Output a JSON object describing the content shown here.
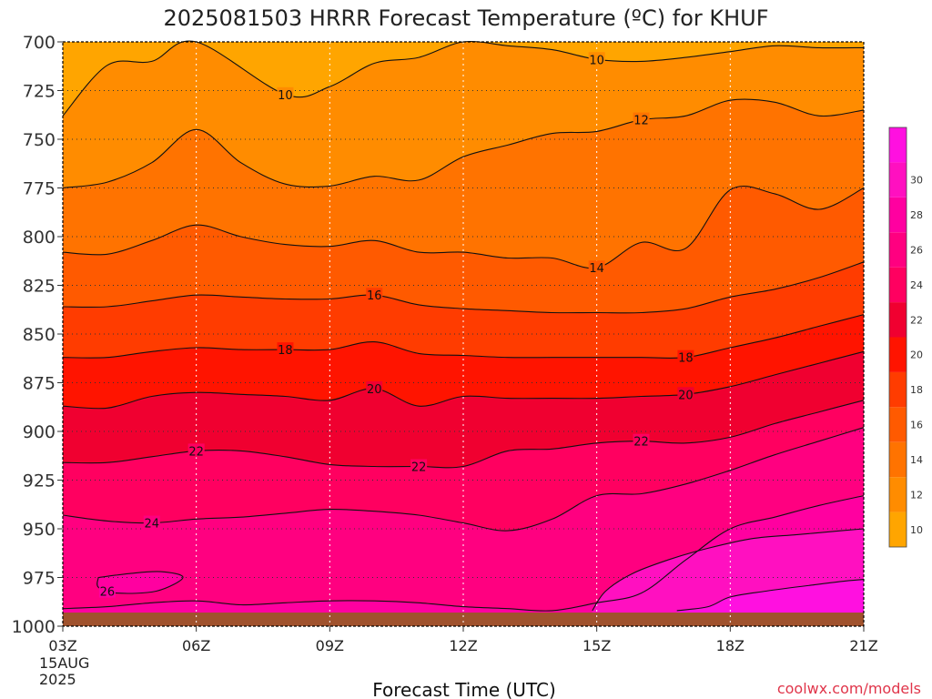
{
  "chart_data": {
    "type": "contour",
    "title": "2025081503 HRRR Forecast Temperature (ºC) for KHUF",
    "xlabel": "Forecast Time (UTC)",
    "credit": "coolwx.com/models",
    "x_ticks": [
      {
        "hour": 0,
        "label": "03Z",
        "sub": [
          "15AUG",
          "2025"
        ]
      },
      {
        "hour": 3,
        "label": "06Z"
      },
      {
        "hour": 6,
        "label": "09Z"
      },
      {
        "hour": 9,
        "label": "12Z"
      },
      {
        "hour": 12,
        "label": "15Z"
      },
      {
        "hour": 15,
        "label": "18Z"
      },
      {
        "hour": 18,
        "label": "21Z"
      }
    ],
    "y_ticks": [
      700,
      725,
      750,
      775,
      800,
      825,
      850,
      875,
      900,
      925,
      950,
      975,
      1000
    ],
    "xlim": [
      0,
      18
    ],
    "ylim": [
      1000,
      700
    ],
    "surface_pressure_hpa": 993,
    "colorbar": {
      "levels": [
        10,
        12,
        14,
        16,
        18,
        20,
        22,
        24,
        26,
        28,
        30
      ],
      "colors": [
        "#ffa500",
        "#ff8c00",
        "#ff7300",
        "#ff5a00",
        "#ff3c00",
        "#ff1400",
        "#f00030",
        "#ff0060",
        "#ff0080",
        "#ff00a0",
        "#ff10c0",
        "#ff10e0"
      ]
    },
    "contours": [
      {
        "value": 10,
        "points": [
          [
            0,
            738
          ],
          [
            1,
            712
          ],
          [
            2,
            710
          ],
          [
            3,
            700
          ],
          [
            5,
            727
          ],
          [
            6,
            723
          ],
          [
            7,
            711
          ],
          [
            8,
            708
          ],
          [
            9,
            700
          ],
          [
            10,
            702
          ],
          [
            11,
            704
          ],
          [
            12,
            709
          ],
          [
            13,
            710
          ],
          [
            14,
            708
          ],
          [
            15,
            705
          ],
          [
            16,
            702
          ],
          [
            17,
            703
          ],
          [
            18,
            703
          ]
        ],
        "labels": [
          [
            5,
            727
          ],
          [
            12,
            709
          ]
        ]
      },
      {
        "value": 12,
        "points": [
          [
            0,
            775
          ],
          [
            1,
            772
          ],
          [
            2,
            762
          ],
          [
            3,
            745
          ],
          [
            4,
            762
          ],
          [
            5,
            773
          ],
          [
            6,
            774
          ],
          [
            7,
            769
          ],
          [
            8,
            771
          ],
          [
            9,
            759
          ],
          [
            10,
            753
          ],
          [
            11,
            747
          ],
          [
            12,
            746
          ],
          [
            13,
            740
          ],
          [
            14,
            738
          ],
          [
            15,
            730
          ],
          [
            16,
            731
          ],
          [
            17,
            738
          ],
          [
            18,
            735
          ]
        ],
        "labels": [
          [
            13,
            740
          ]
        ]
      },
      {
        "value": 14,
        "points": [
          [
            0,
            808
          ],
          [
            1,
            809
          ],
          [
            2,
            802
          ],
          [
            3,
            794
          ],
          [
            4,
            800
          ],
          [
            5,
            804
          ],
          [
            6,
            805
          ],
          [
            7,
            802
          ],
          [
            8,
            808
          ],
          [
            9,
            808
          ],
          [
            10,
            811
          ],
          [
            11,
            811
          ],
          [
            12,
            816
          ],
          [
            13,
            803
          ],
          [
            14,
            806
          ],
          [
            15,
            776
          ],
          [
            16,
            778
          ],
          [
            17,
            786
          ],
          [
            18,
            775
          ]
        ],
        "labels": [
          [
            12,
            816
          ]
        ]
      },
      {
        "value": 16,
        "points": [
          [
            0,
            836
          ],
          [
            1,
            836
          ],
          [
            2,
            833
          ],
          [
            3,
            830
          ],
          [
            4,
            831
          ],
          [
            5,
            832
          ],
          [
            6,
            832
          ],
          [
            7,
            830
          ],
          [
            8,
            835
          ],
          [
            9,
            837
          ],
          [
            10,
            838
          ],
          [
            11,
            839
          ],
          [
            12,
            839
          ],
          [
            13,
            839
          ],
          [
            14,
            837
          ],
          [
            15,
            831
          ],
          [
            16,
            827
          ],
          [
            17,
            821
          ],
          [
            18,
            813
          ]
        ],
        "labels": [
          [
            7,
            830
          ]
        ]
      },
      {
        "value": 18,
        "points": [
          [
            0,
            862
          ],
          [
            1,
            862
          ],
          [
            2,
            859
          ],
          [
            3,
            857
          ],
          [
            4,
            858
          ],
          [
            5,
            858
          ],
          [
            6,
            858
          ],
          [
            7,
            854
          ],
          [
            8,
            860
          ],
          [
            9,
            861
          ],
          [
            10,
            862
          ],
          [
            11,
            862
          ],
          [
            12,
            862
          ],
          [
            13,
            862
          ],
          [
            14,
            862
          ],
          [
            15,
            857
          ],
          [
            16,
            852
          ],
          [
            17,
            846
          ],
          [
            18,
            840
          ]
        ],
        "labels": [
          [
            5,
            858
          ],
          [
            14,
            862
          ]
        ]
      },
      {
        "value": 20,
        "points": [
          [
            0,
            887
          ],
          [
            1,
            888
          ],
          [
            2,
            882
          ],
          [
            3,
            880
          ],
          [
            4,
            881
          ],
          [
            5,
            882
          ],
          [
            6,
            884
          ],
          [
            7,
            878
          ],
          [
            8,
            887
          ],
          [
            9,
            882
          ],
          [
            10,
            883
          ],
          [
            11,
            883
          ],
          [
            12,
            883
          ],
          [
            13,
            882
          ],
          [
            14,
            881
          ],
          [
            15,
            877
          ],
          [
            16,
            871
          ],
          [
            17,
            865
          ],
          [
            18,
            859
          ]
        ],
        "labels": [
          [
            7,
            878
          ],
          [
            14,
            881
          ]
        ]
      },
      {
        "value": 22,
        "points": [
          [
            0,
            916
          ],
          [
            1,
            916
          ],
          [
            2,
            913
          ],
          [
            3,
            910
          ],
          [
            4,
            910
          ],
          [
            5,
            913
          ],
          [
            6,
            917
          ],
          [
            7,
            918
          ],
          [
            8,
            918
          ],
          [
            9,
            918
          ],
          [
            10,
            910
          ],
          [
            11,
            909
          ],
          [
            12,
            906
          ],
          [
            13,
            905
          ],
          [
            14,
            906
          ],
          [
            15,
            903
          ],
          [
            16,
            896
          ],
          [
            17,
            890
          ],
          [
            18,
            884
          ]
        ],
        "labels": [
          [
            3,
            910
          ],
          [
            8,
            918
          ],
          [
            13,
            905
          ]
        ]
      },
      {
        "value": 24,
        "points": [
          [
            0,
            943
          ],
          [
            1,
            946
          ],
          [
            2,
            947
          ],
          [
            3,
            945
          ],
          [
            4,
            944
          ],
          [
            5,
            942
          ],
          [
            6,
            940
          ],
          [
            7,
            941
          ],
          [
            8,
            943
          ],
          [
            9,
            947
          ],
          [
            10,
            951
          ],
          [
            11,
            945
          ],
          [
            12,
            933
          ],
          [
            13,
            932
          ],
          [
            14,
            927
          ],
          [
            15,
            920
          ],
          [
            16,
            912
          ],
          [
            17,
            905
          ],
          [
            18,
            898
          ]
        ],
        "labels": [
          [
            2,
            947
          ]
        ]
      },
      {
        "value": 26,
        "points": [
          [
            0,
            991
          ],
          [
            1,
            990
          ],
          [
            2,
            988
          ],
          [
            3,
            987
          ],
          [
            4,
            989
          ],
          [
            5,
            988
          ],
          [
            6,
            987
          ],
          [
            7,
            987
          ],
          [
            8,
            988
          ],
          [
            9,
            990
          ],
          [
            10,
            991
          ],
          [
            11,
            992
          ],
          [
            12,
            988
          ],
          [
            13,
            983
          ],
          [
            14,
            966
          ],
          [
            15,
            950
          ],
          [
            16,
            944
          ],
          [
            17,
            938
          ],
          [
            18,
            933
          ]
        ],
        "labels": []
      },
      {
        "value": 26,
        "points": [
          [
            0.8,
            975
          ],
          [
            1.5,
            973
          ],
          [
            2.2,
            972
          ],
          [
            2.7,
            975
          ],
          [
            2.1,
            982
          ],
          [
            1.2,
            983
          ],
          [
            0.8,
            980
          ],
          [
            0.8,
            975
          ]
        ],
        "labels": [
          [
            1,
            982
          ]
        ]
      },
      {
        "value": 28,
        "points": [
          [
            11.9,
            992
          ],
          [
            12.2,
            982
          ],
          [
            12.8,
            973
          ],
          [
            13.6,
            966
          ],
          [
            14.5,
            960
          ],
          [
            15.5,
            955
          ],
          [
            16.5,
            953
          ],
          [
            17.5,
            951
          ],
          [
            18,
            950
          ]
        ],
        "labels": []
      },
      {
        "value": 30,
        "points": [
          [
            13.8,
            992
          ],
          [
            14.5,
            990
          ],
          [
            15,
            985
          ],
          [
            15.8,
            982
          ],
          [
            16.8,
            979
          ],
          [
            17.5,
            977
          ],
          [
            18,
            976
          ]
        ],
        "labels": []
      }
    ]
  }
}
